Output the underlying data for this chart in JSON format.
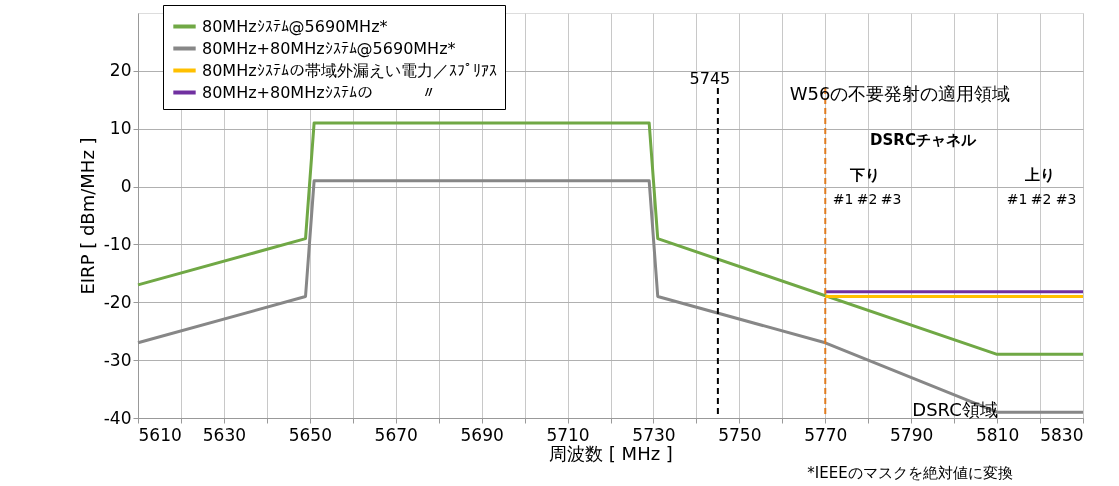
{
  "chart_data": {
    "type": "line",
    "xlabel": "周波数 [ MHz ]",
    "ylabel": "EIRP [ dBm/MHz ]",
    "xlim": [
      5610,
      5830
    ],
    "ylim": [
      -40,
      30
    ],
    "xticks": [
      5610,
      {
        "value": 5620,
        "label": null
      },
      5630,
      {
        "value": 5640,
        "label": null
      },
      5650,
      {
        "value": 5660,
        "label": null
      },
      5670,
      {
        "value": 5680,
        "label": null
      },
      5690,
      {
        "value": 5700,
        "label": null
      },
      5710,
      {
        "value": 5720,
        "label": null
      },
      5730,
      {
        "value": 5740,
        "label": null
      },
      5750,
      {
        "value": 5760,
        "label": null
      },
      5770,
      {
        "value": 5780,
        "label": null
      },
      5790,
      {
        "value": 5800,
        "label": null
      },
      5810,
      {
        "value": 5820,
        "label": null
      },
      5830
    ],
    "yticks": [
      -40,
      -30,
      -20,
      -10,
      0,
      10,
      20
    ],
    "grid": true,
    "legend": "top left",
    "marker": "none",
    "line_style": "solid",
    "series": [
      {
        "name": "80MHzｼｽﾃﾑ@5690MHz*",
        "color": "#70a845",
        "x": [
          5610,
          5649,
          5651,
          5729,
          5731,
          5810,
          5830
        ],
        "values": [
          -17,
          -9,
          11,
          11,
          -9,
          -29,
          -29
        ]
      },
      {
        "name": "80MHz+80MHzｼｽﾃﾑ@5690MHz*",
        "color": "#878787",
        "x": [
          5610,
          5649,
          5651,
          5729,
          5731,
          5770,
          5810,
          5830
        ],
        "values": [
          -27,
          -19,
          1,
          1,
          -19,
          -27,
          -39,
          -39
        ]
      },
      {
        "name": "80MHzｼｽﾃﾑの帯域外漏えい電力／ｽﾌﾟﾘｱｽ",
        "color": "#ffc000",
        "x": [
          5770,
          5830
        ],
        "values": [
          -19,
          -19
        ]
      },
      {
        "name": "80MHz+80MHzｼｽﾃﾑの　　　〃",
        "color": "#7030a0",
        "x": [
          5770,
          5830
        ],
        "values": [
          -18.2,
          -18.2
        ]
      }
    ],
    "ref_lines": [
      {
        "axis": "x",
        "value": 5745,
        "label": "5745",
        "color": "#000000",
        "line_style": "dashed"
      },
      {
        "axis": "x",
        "value": 5770,
        "color": "#e07b1f",
        "line_style": "dashed"
      }
    ],
    "annotations": [
      "W56の不要発射の適用領域",
      "DSRC領域",
      "*IEEEのマスクを絶対値に変換",
      "DSRCチャネル",
      "下り",
      "上り",
      "#1",
      "#2",
      "#3",
      "#1",
      "#2",
      "#3"
    ]
  }
}
